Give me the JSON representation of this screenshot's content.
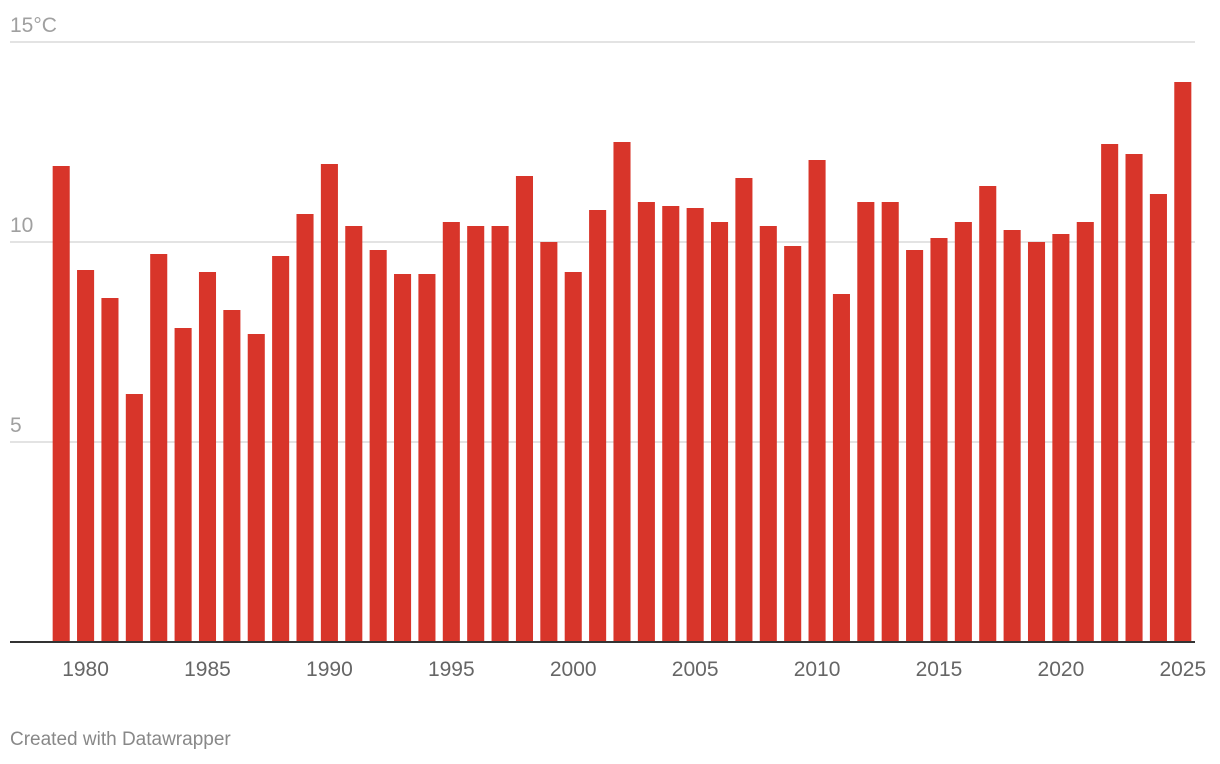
{
  "chart_data": {
    "type": "bar",
    "title": "",
    "xlabel": "",
    "ylabel": "",
    "unit": "°C",
    "ylim": [
      0,
      15
    ],
    "yticks": [
      {
        "value": 5,
        "label": "5"
      },
      {
        "value": 10,
        "label": "10"
      },
      {
        "value": 15,
        "label": "15°C"
      }
    ],
    "xtick_labels": [
      "1980",
      "1985",
      "1990",
      "1995",
      "2000",
      "2005",
      "2010",
      "2015",
      "2020",
      "2025"
    ],
    "categories": [
      1979,
      1980,
      1981,
      1982,
      1983,
      1984,
      1985,
      1986,
      1987,
      1988,
      1989,
      1990,
      1991,
      1992,
      1993,
      1994,
      1995,
      1996,
      1997,
      1998,
      1999,
      2000,
      2001,
      2002,
      2003,
      2004,
      2005,
      2006,
      2007,
      2008,
      2009,
      2010,
      2011,
      2012,
      2013,
      2014,
      2015,
      2016,
      2017,
      2018,
      2019,
      2020,
      2021,
      2022,
      2023,
      2024,
      2025
    ],
    "values": [
      11.9,
      9.3,
      8.6,
      6.2,
      9.7,
      7.85,
      9.25,
      8.3,
      7.7,
      9.65,
      10.7,
      11.95,
      10.4,
      9.8,
      9.2,
      9.2,
      10.5,
      10.4,
      10.4,
      11.65,
      10.0,
      9.25,
      10.8,
      12.5,
      11.0,
      10.9,
      10.85,
      10.5,
      11.6,
      10.4,
      9.9,
      12.05,
      8.7,
      11.0,
      11.0,
      9.8,
      10.1,
      10.5,
      11.4,
      10.3,
      10.0,
      10.2,
      10.5,
      12.45,
      12.2,
      11.2,
      14.0
    ],
    "grid": true,
    "bar_color": "#d8352a"
  },
  "footer": {
    "credit": "Created with Datawrapper"
  }
}
